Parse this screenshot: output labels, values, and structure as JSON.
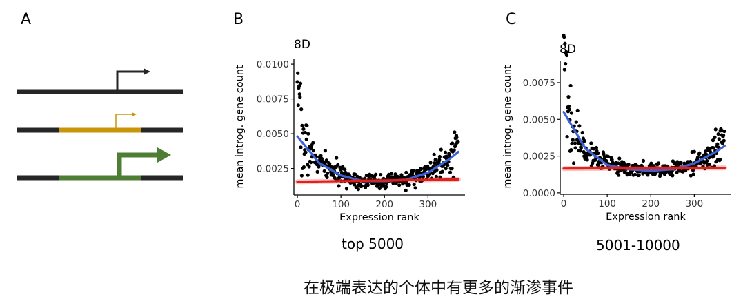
{
  "panels": {
    "a": {
      "letter": "A"
    },
    "b": {
      "letter": "B",
      "subtitle": "top 5000"
    },
    "c": {
      "letter": "C",
      "subtitle": "5001-10000"
    }
  },
  "caption": "在极端表达的个体中有更多的渐渗事件",
  "diagram": {
    "line_color": "#262626",
    "arrow_color": "#262626",
    "gold_color": "#c89508",
    "green_color": "#4e7e33"
  },
  "chart_data": [
    {
      "id": "B",
      "type": "scatter",
      "title": "8D",
      "xlabel": "Expression rank",
      "ylabel": "mean introg. gene count",
      "xlim": [
        -8,
        385
      ],
      "ylim": [
        0.0006,
        0.0104
      ],
      "xticks": [
        0,
        100,
        200,
        300
      ],
      "xtick_labels": [
        "0",
        "100",
        "200",
        "300"
      ],
      "yticks": [
        0.0025,
        0.005,
        0.0075,
        0.01
      ],
      "ytick_labels": [
        "0.0025",
        "0.0050",
        "0.0075",
        "0.0100"
      ],
      "n_points": 370,
      "point_color": "#000000",
      "series": [
        {
          "name": "quadratic fit",
          "color": "#3b63d8",
          "x": [
            0,
            50,
            100,
            150,
            200,
            250,
            300,
            350,
            370
          ],
          "y": [
            0.0048,
            0.0029,
            0.002,
            0.0016,
            0.0016,
            0.0017,
            0.0022,
            0.0032,
            0.0037
          ]
        },
        {
          "name": "linear fit",
          "color": "#e0201b",
          "x": [
            0,
            370
          ],
          "y": [
            0.00155,
            0.00172
          ]
        }
      ]
    },
    {
      "id": "C",
      "type": "scatter",
      "title": "8D",
      "xlabel": "Expression rank",
      "ylabel": "mean introg. gene count",
      "xlim": [
        -8,
        385
      ],
      "ylim": [
        -0.0001,
        0.009
      ],
      "xticks": [
        0,
        100,
        200,
        300
      ],
      "xtick_labels": [
        "0",
        "100",
        "200",
        "300"
      ],
      "yticks": [
        0,
        0.0025,
        0.005,
        0.0075
      ],
      "ytick_labels": [
        "0.0000",
        "0.0025",
        "0.0050",
        "0.0075"
      ],
      "n_points": 370,
      "point_color": "#000000",
      "series": [
        {
          "name": "quadratic fit",
          "color": "#3b63d8",
          "x": [
            0,
            50,
            100,
            150,
            200,
            250,
            300,
            350,
            370
          ],
          "y": [
            0.0055,
            0.003,
            0.0019,
            0.0016,
            0.0015,
            0.0016,
            0.002,
            0.0028,
            0.0032
          ]
        },
        {
          "name": "linear fit",
          "color": "#e0201b",
          "x": [
            0,
            370
          ],
          "y": [
            0.00165,
            0.0017
          ]
        }
      ]
    }
  ]
}
